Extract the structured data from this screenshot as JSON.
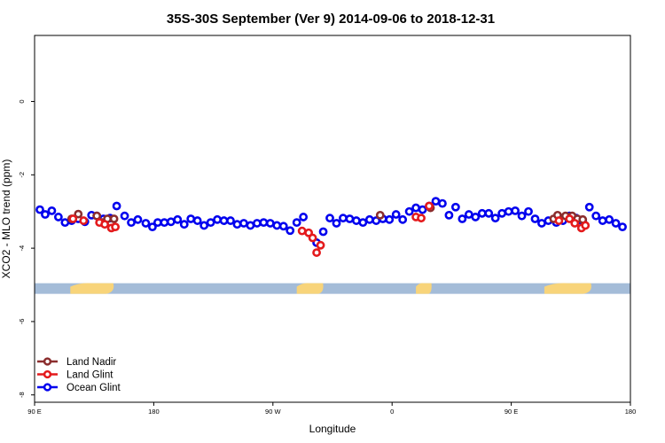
{
  "chart_data": {
    "type": "scatter",
    "title": "35S-30S September (Ver 9)   2014-09-06 to 2018-12-31",
    "xlabel": "Longitude",
    "ylabel": "XCO2 - MLO trend (ppm)",
    "xlim": [
      0,
      450
    ],
    "ylim": [
      -8.2,
      1.8
    ],
    "xticks": [
      {
        "value": 0,
        "label": "90 E"
      },
      {
        "value": 90,
        "label": "180"
      },
      {
        "value": 180,
        "label": "90 W"
      },
      {
        "value": 270,
        "label": "0"
      },
      {
        "value": 360,
        "label": "90 E"
      },
      {
        "value": 450,
        "label": "180"
      }
    ],
    "yticks": [
      0,
      -2,
      -4,
      -6,
      -8
    ],
    "landmask_band": {
      "y": -5.1,
      "ocean_color": "#a4bcd8",
      "land_color": "#f8d47a",
      "land_ranges": [
        [
          27,
          63
        ],
        [
          198,
          220
        ],
        [
          288,
          301
        ],
        [
          385,
          424
        ]
      ]
    },
    "series": [
      {
        "name": "Land Nadir",
        "color": "#8b2e2e",
        "points": [
          [
            28,
            -3.2
          ],
          [
            33,
            -3.07
          ],
          [
            47,
            -3.12
          ],
          [
            51,
            -3.3
          ],
          [
            55,
            -3.2
          ],
          [
            60,
            -3.2
          ],
          [
            261,
            -3.1
          ],
          [
            299,
            -2.9
          ],
          [
            392,
            -3.2
          ],
          [
            395,
            -3.1
          ],
          [
            401,
            -3.12
          ],
          [
            406,
            -3.12
          ],
          [
            410,
            -3.2
          ],
          [
            414,
            -3.22
          ]
        ]
      },
      {
        "name": "Land Glint",
        "color": "#e41a1c",
        "points": [
          [
            29,
            -3.2
          ],
          [
            37,
            -3.25
          ],
          [
            49,
            -3.3
          ],
          [
            53,
            -3.35
          ],
          [
            58,
            -3.45
          ],
          [
            61,
            -3.42
          ],
          [
            202,
            -3.53
          ],
          [
            207,
            -3.58
          ],
          [
            210,
            -3.72
          ],
          [
            213,
            -4.12
          ],
          [
            216,
            -3.92
          ],
          [
            288,
            -3.15
          ],
          [
            292,
            -3.18
          ],
          [
            298,
            -2.85
          ],
          [
            396,
            -3.25
          ],
          [
            404,
            -3.2
          ],
          [
            408,
            -3.32
          ],
          [
            413,
            -3.45
          ],
          [
            416,
            -3.38
          ]
        ]
      },
      {
        "name": "Ocean Glint",
        "color": "#0000ee",
        "points": [
          [
            4,
            -2.95
          ],
          [
            8,
            -3.08
          ],
          [
            13,
            -2.98
          ],
          [
            18,
            -3.15
          ],
          [
            23,
            -3.3
          ],
          [
            28,
            -3.25
          ],
          [
            33,
            -3.2
          ],
          [
            38,
            -3.28
          ],
          [
            43,
            -3.1
          ],
          [
            47,
            -3.12
          ],
          [
            52,
            -3.2
          ],
          [
            57,
            -3.18
          ],
          [
            62,
            -2.85
          ],
          [
            68,
            -3.12
          ],
          [
            73,
            -3.3
          ],
          [
            78,
            -3.22
          ],
          [
            84,
            -3.32
          ],
          [
            89,
            -3.42
          ],
          [
            93,
            -3.3
          ],
          [
            98,
            -3.3
          ],
          [
            103,
            -3.28
          ],
          [
            108,
            -3.22
          ],
          [
            113,
            -3.35
          ],
          [
            118,
            -3.2
          ],
          [
            123,
            -3.25
          ],
          [
            128,
            -3.38
          ],
          [
            133,
            -3.3
          ],
          [
            138,
            -3.22
          ],
          [
            143,
            -3.25
          ],
          [
            148,
            -3.25
          ],
          [
            153,
            -3.35
          ],
          [
            158,
            -3.32
          ],
          [
            163,
            -3.38
          ],
          [
            168,
            -3.32
          ],
          [
            173,
            -3.3
          ],
          [
            178,
            -3.32
          ],
          [
            183,
            -3.38
          ],
          [
            188,
            -3.4
          ],
          [
            193,
            -3.52
          ],
          [
            198,
            -3.3
          ],
          [
            203,
            -3.15
          ],
          [
            213,
            -3.85
          ],
          [
            218,
            -3.55
          ],
          [
            223,
            -3.18
          ],
          [
            228,
            -3.32
          ],
          [
            233,
            -3.18
          ],
          [
            238,
            -3.2
          ],
          [
            243,
            -3.25
          ],
          [
            248,
            -3.3
          ],
          [
            253,
            -3.22
          ],
          [
            258,
            -3.25
          ],
          [
            263,
            -3.2
          ],
          [
            268,
            -3.22
          ],
          [
            273,
            -3.08
          ],
          [
            278,
            -3.22
          ],
          [
            283,
            -3.0
          ],
          [
            288,
            -2.9
          ],
          [
            293,
            -2.95
          ],
          [
            298,
            -2.85
          ],
          [
            303,
            -2.72
          ],
          [
            308,
            -2.78
          ],
          [
            313,
            -3.1
          ],
          [
            318,
            -2.88
          ],
          [
            323,
            -3.2
          ],
          [
            328,
            -3.08
          ],
          [
            333,
            -3.15
          ],
          [
            338,
            -3.05
          ],
          [
            343,
            -3.05
          ],
          [
            348,
            -3.18
          ],
          [
            353,
            -3.05
          ],
          [
            358,
            -3.0
          ],
          [
            363,
            -2.98
          ],
          [
            368,
            -3.12
          ],
          [
            373,
            -3.0
          ],
          [
            378,
            -3.2
          ],
          [
            383,
            -3.32
          ],
          [
            388,
            -3.25
          ],
          [
            394,
            -3.3
          ],
          [
            399,
            -3.25
          ],
          [
            404,
            -3.12
          ],
          [
            409,
            -3.18
          ],
          [
            414,
            -3.28
          ],
          [
            419,
            -2.88
          ],
          [
            424,
            -3.12
          ],
          [
            429,
            -3.25
          ],
          [
            434,
            -3.22
          ],
          [
            439,
            -3.32
          ],
          [
            444,
            -3.42
          ]
        ]
      }
    ],
    "legend": {
      "position": "bottom-left",
      "entries": [
        "Land Nadir",
        "Land Glint",
        "Ocean Glint"
      ]
    }
  }
}
